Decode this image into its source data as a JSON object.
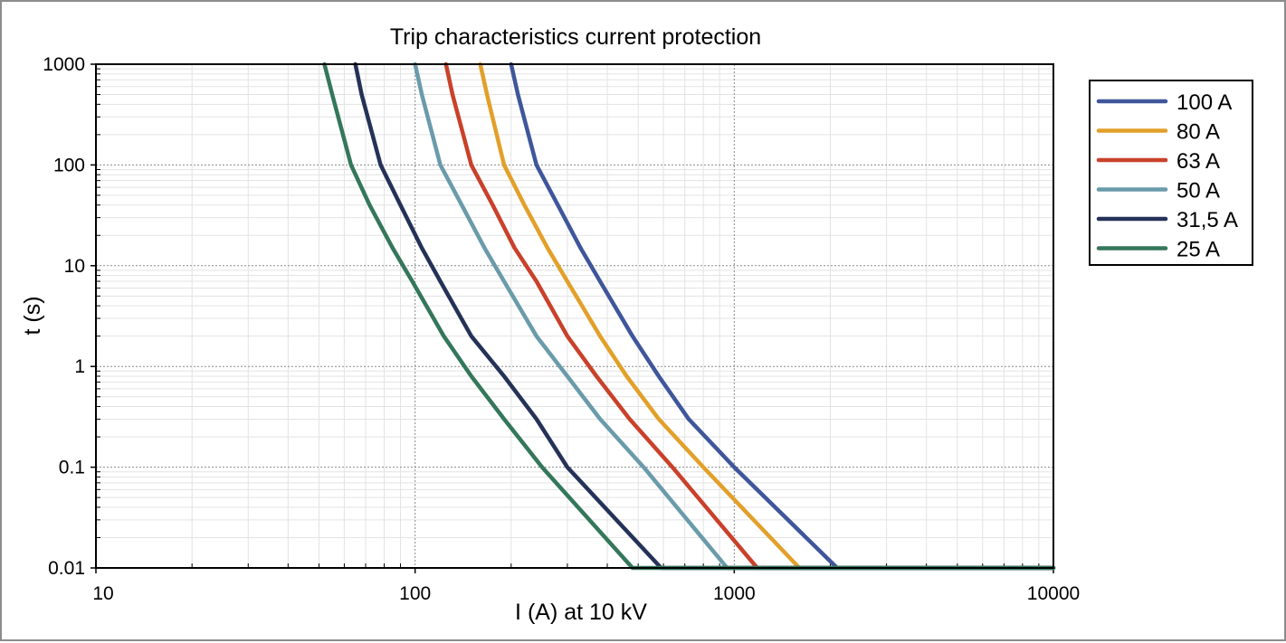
{
  "chart_data": {
    "type": "line",
    "title": "Trip characteristics current protection",
    "xlabel": "I (A)  at 10 kV",
    "ylabel": "t (s)",
    "xscale": "log",
    "yscale": "log",
    "xlim": [
      10,
      10000
    ],
    "ylim": [
      0.01,
      1000
    ],
    "xticks": [
      10,
      100,
      1000,
      10000
    ],
    "xtick_labels": [
      "10",
      "100",
      "1000",
      "10000"
    ],
    "yticks": [
      0.01,
      0.1,
      1,
      10,
      100,
      1000
    ],
    "ytick_labels": [
      "0.01",
      "0.1",
      "1",
      "10",
      "100",
      "1000"
    ],
    "grid": true,
    "legend_position": "right",
    "series": [
      {
        "name": "100 A",
        "color": "#3f569b",
        "x": [
          200,
          210,
          240,
          280,
          330,
          380,
          480,
          580,
          720,
          1000,
          2100,
          10000
        ],
        "t": [
          1000,
          500,
          100,
          40,
          15,
          7,
          2,
          0.8,
          0.3,
          0.1,
          0.01,
          0.01
        ]
      },
      {
        "name": "80 A",
        "color": "#e2a02a",
        "x": [
          160,
          168,
          190,
          220,
          260,
          300,
          380,
          460,
          580,
          800,
          1600,
          10000
        ],
        "t": [
          1000,
          500,
          100,
          40,
          15,
          7,
          2,
          0.8,
          0.3,
          0.1,
          0.01,
          0.01
        ]
      },
      {
        "name": "63 A",
        "color": "#c9412a",
        "x": [
          125,
          131,
          150,
          175,
          205,
          240,
          300,
          370,
          470,
          640,
          1180,
          10000
        ],
        "t": [
          1000,
          500,
          100,
          40,
          15,
          7,
          2,
          0.8,
          0.3,
          0.1,
          0.01,
          0.01
        ]
      },
      {
        "name": "50 A",
        "color": "#6a9bab",
        "x": [
          100,
          105,
          120,
          140,
          165,
          190,
          240,
          300,
          380,
          520,
          950,
          10000
        ],
        "t": [
          1000,
          500,
          100,
          40,
          15,
          7,
          2,
          0.8,
          0.3,
          0.1,
          0.01,
          0.01
        ]
      },
      {
        "name": "31,5 A",
        "color": "#253258",
        "x": [
          65,
          68,
          78,
          90,
          105,
          120,
          150,
          190,
          240,
          300,
          590,
          10000
        ],
        "t": [
          1000,
          500,
          100,
          40,
          15,
          7,
          2,
          0.8,
          0.3,
          0.1,
          0.01,
          0.01
        ]
      },
      {
        "name": "25 A",
        "color": "#34775a",
        "x": [
          52,
          55,
          63,
          72,
          85,
          98,
          123,
          150,
          190,
          250,
          480,
          10000
        ],
        "t": [
          1000,
          500,
          100,
          40,
          15,
          7,
          2,
          0.8,
          0.3,
          0.1,
          0.01,
          0.01
        ]
      }
    ]
  }
}
